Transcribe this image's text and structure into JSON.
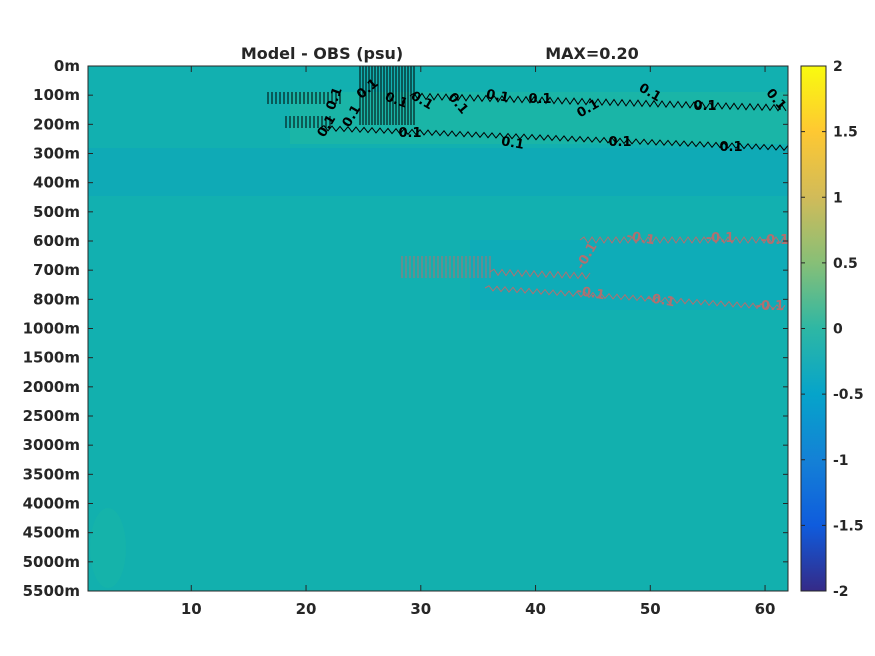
{
  "chart_data": {
    "type": "heatmap",
    "title": "Model - OBS (psu)",
    "max_label": "MAX=0.20",
    "xlim": [
      1,
      62
    ],
    "x_ticks": [
      10,
      20,
      30,
      40,
      50,
      60
    ],
    "y_ticks": [
      "0m",
      "100m",
      "200m",
      "300m",
      "400m",
      "500m",
      "600m",
      "700m",
      "800m",
      "1000m",
      "1500m",
      "2000m",
      "2500m",
      "3000m",
      "3500m",
      "4000m",
      "4500m",
      "5000m",
      "5500m"
    ],
    "colorbar": {
      "clim": [
        -2,
        2
      ],
      "ticks": [
        2,
        1.5,
        1,
        0.5,
        0,
        -0.5,
        -1,
        -1.5,
        -2
      ],
      "tick_labels": [
        "2",
        "1.5",
        "1",
        "0.5",
        "0",
        "-0.5",
        "-1",
        "-1.5",
        "-2"
      ],
      "colormap": "parula"
    },
    "background_value": 0,
    "contour_level": 0.1,
    "positive_contours": {
      "color": "#000000",
      "labels": [
        "0.1",
        "0.1",
        "0.1",
        "0.1",
        "0.1",
        "0.1",
        "0.1",
        "0.1",
        "0.1",
        "0.1",
        "0.1",
        "0.1",
        "0.1"
      ]
    },
    "negative_contours": {
      "color": "#b07070",
      "labels": [
        "-0.1",
        "-0.1",
        "-0.1",
        "-0.1",
        "-0.1",
        "-0.1",
        "-0.1"
      ]
    }
  }
}
